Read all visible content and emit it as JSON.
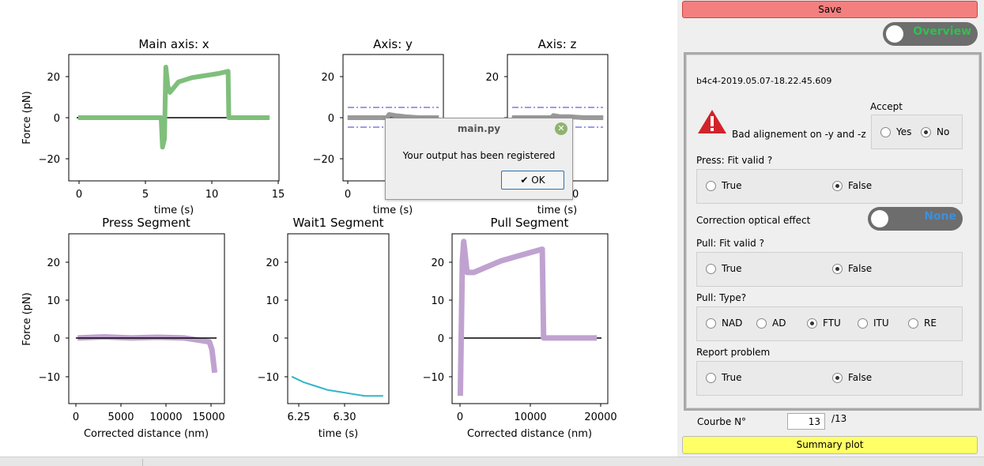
{
  "dialog": {
    "title": "main.py",
    "message": "Your output has been registered",
    "ok_label": "OK"
  },
  "panel": {
    "save_label": "Save",
    "overview_label": "Overview",
    "filename": "b4c4-2019.05.07-18.22.45.609",
    "warning_text": "Bad alignement on -y and -z",
    "accept": {
      "label": "Accept",
      "options": [
        "Yes",
        "No"
      ],
      "selected": "No"
    },
    "press_fit": {
      "label": "Press: Fit valid ?",
      "options": [
        "True",
        "False"
      ],
      "selected": "False"
    },
    "correction": {
      "label": "Correction optical effect",
      "toggle_label": "None"
    },
    "pull_fit": {
      "label": "Pull: Fit valid ?",
      "options": [
        "True",
        "False"
      ],
      "selected": "False"
    },
    "pull_type": {
      "label": "Pull: Type?",
      "options": [
        "NAD",
        "AD",
        "FTU",
        "ITU",
        "RE"
      ],
      "selected": "FTU"
    },
    "report": {
      "label": "Report problem",
      "options": [
        "True",
        "False"
      ],
      "selected": "False"
    },
    "curve": {
      "label": "Courbe N°",
      "value": "13",
      "total": "/13"
    },
    "summary_label": "Summary plot"
  },
  "colors": {
    "green": "#7fbf7b",
    "grey": "#999999",
    "purple": "#c0a2d0",
    "cyan": "#30b5c8",
    "dash": "#7b7be0",
    "save": "#f47f7f",
    "summary": "#ffff66"
  },
  "chart_data": [
    {
      "type": "line",
      "title": "Main axis: x",
      "xlabel": "time (s)",
      "ylabel": "Force (pN)",
      "xticks": [
        "0",
        "5",
        "10",
        "15"
      ],
      "yticks": [
        "20",
        "0",
        "−20"
      ],
      "xlim": [
        -0.7,
        15
      ],
      "ylim": [
        -30,
        30
      ],
      "series": [
        {
          "x": [
            0,
            6.2,
            6.3,
            6.45,
            6.55,
            6.7,
            6.85,
            7.5,
            8.5,
            9.5,
            10.5,
            11.2,
            11.25,
            11.3,
            14.3
          ],
          "y": [
            0,
            0,
            -14,
            -10,
            24,
            15,
            12,
            17,
            19,
            20,
            21,
            22,
            0,
            0,
            0
          ]
        }
      ]
    },
    {
      "type": "line",
      "title": "Axis: y",
      "xlabel": "time (s)",
      "xticks": [
        "0",
        "10"
      ],
      "yticks": [
        "20",
        "0",
        "−20"
      ],
      "xlim": [
        -0.7,
        15
      ],
      "ylim": [
        -30,
        30
      ],
      "series": [
        {
          "x": [
            0,
            6.2,
            6.5,
            7.5,
            9,
            11.2,
            14.3
          ],
          "y": [
            0,
            0,
            1.5,
            1,
            0.5,
            0,
            0
          ]
        }
      ]
    },
    {
      "type": "line",
      "title": "Axis: z",
      "xlabel": "time (s)",
      "xticks": [
        "0",
        "10"
      ],
      "yticks": [
        "20",
        "0",
        "−20"
      ],
      "xlim": [
        -0.7,
        15
      ],
      "ylim": [
        -30,
        30
      ],
      "series": [
        {
          "x": [
            0,
            6.2,
            6.5,
            7.5,
            9,
            11.2,
            14.3
          ],
          "y": [
            0,
            0,
            1,
            0.5,
            0.5,
            0,
            0
          ]
        }
      ]
    },
    {
      "type": "line",
      "title": "Press Segment",
      "xlabel": "Corrected distance (nm)",
      "ylabel": "Force (pN)",
      "xticks": [
        "0",
        "5000",
        "10000",
        "15000"
      ],
      "yticks": [
        "20",
        "10",
        "0",
        "−10"
      ],
      "xlim": [
        -1000,
        16500
      ],
      "ylim": [
        -17,
        27
      ],
      "series": [
        {
          "x": [
            0,
            3000,
            6000,
            9000,
            12000,
            14800,
            15100,
            15400
          ],
          "y": [
            0,
            0.3,
            0,
            0.2,
            0,
            -1,
            -3,
            -9
          ]
        }
      ]
    },
    {
      "type": "line",
      "title": "Wait1 Segment",
      "xlabel": "time (s)",
      "xticks": [
        "6.25",
        "6.30"
      ],
      "yticks": [
        "20",
        "10",
        "0",
        "−10"
      ],
      "xlim": [
        6.22,
        6.345
      ],
      "ylim": [
        -17,
        27
      ],
      "series": [
        {
          "x": [
            6.225,
            6.24,
            6.255,
            6.27,
            6.285,
            6.3,
            6.315,
            6.33,
            6.338
          ],
          "y": [
            -10,
            -11.5,
            -12.5,
            -13.5,
            -14,
            -14.5,
            -15,
            -15,
            -15
          ]
        }
      ]
    },
    {
      "type": "line",
      "title": "Pull Segment",
      "xlabel": "Corrected distance (nm)",
      "xticks": [
        "0",
        "10000",
        "20000"
      ],
      "yticks": [
        "20",
        "10",
        "0",
        "−10"
      ],
      "xlim": [
        -1200,
        21600
      ],
      "ylim": [
        -17,
        27
      ],
      "series": [
        {
          "x": [
            0,
            300,
            500,
            1000,
            2000,
            4000,
            6000,
            8000,
            10000,
            12000,
            12200,
            20000
          ],
          "y": [
            -15,
            20,
            25,
            17,
            17,
            18.5,
            20,
            21,
            22,
            23,
            0,
            0
          ]
        }
      ]
    }
  ]
}
